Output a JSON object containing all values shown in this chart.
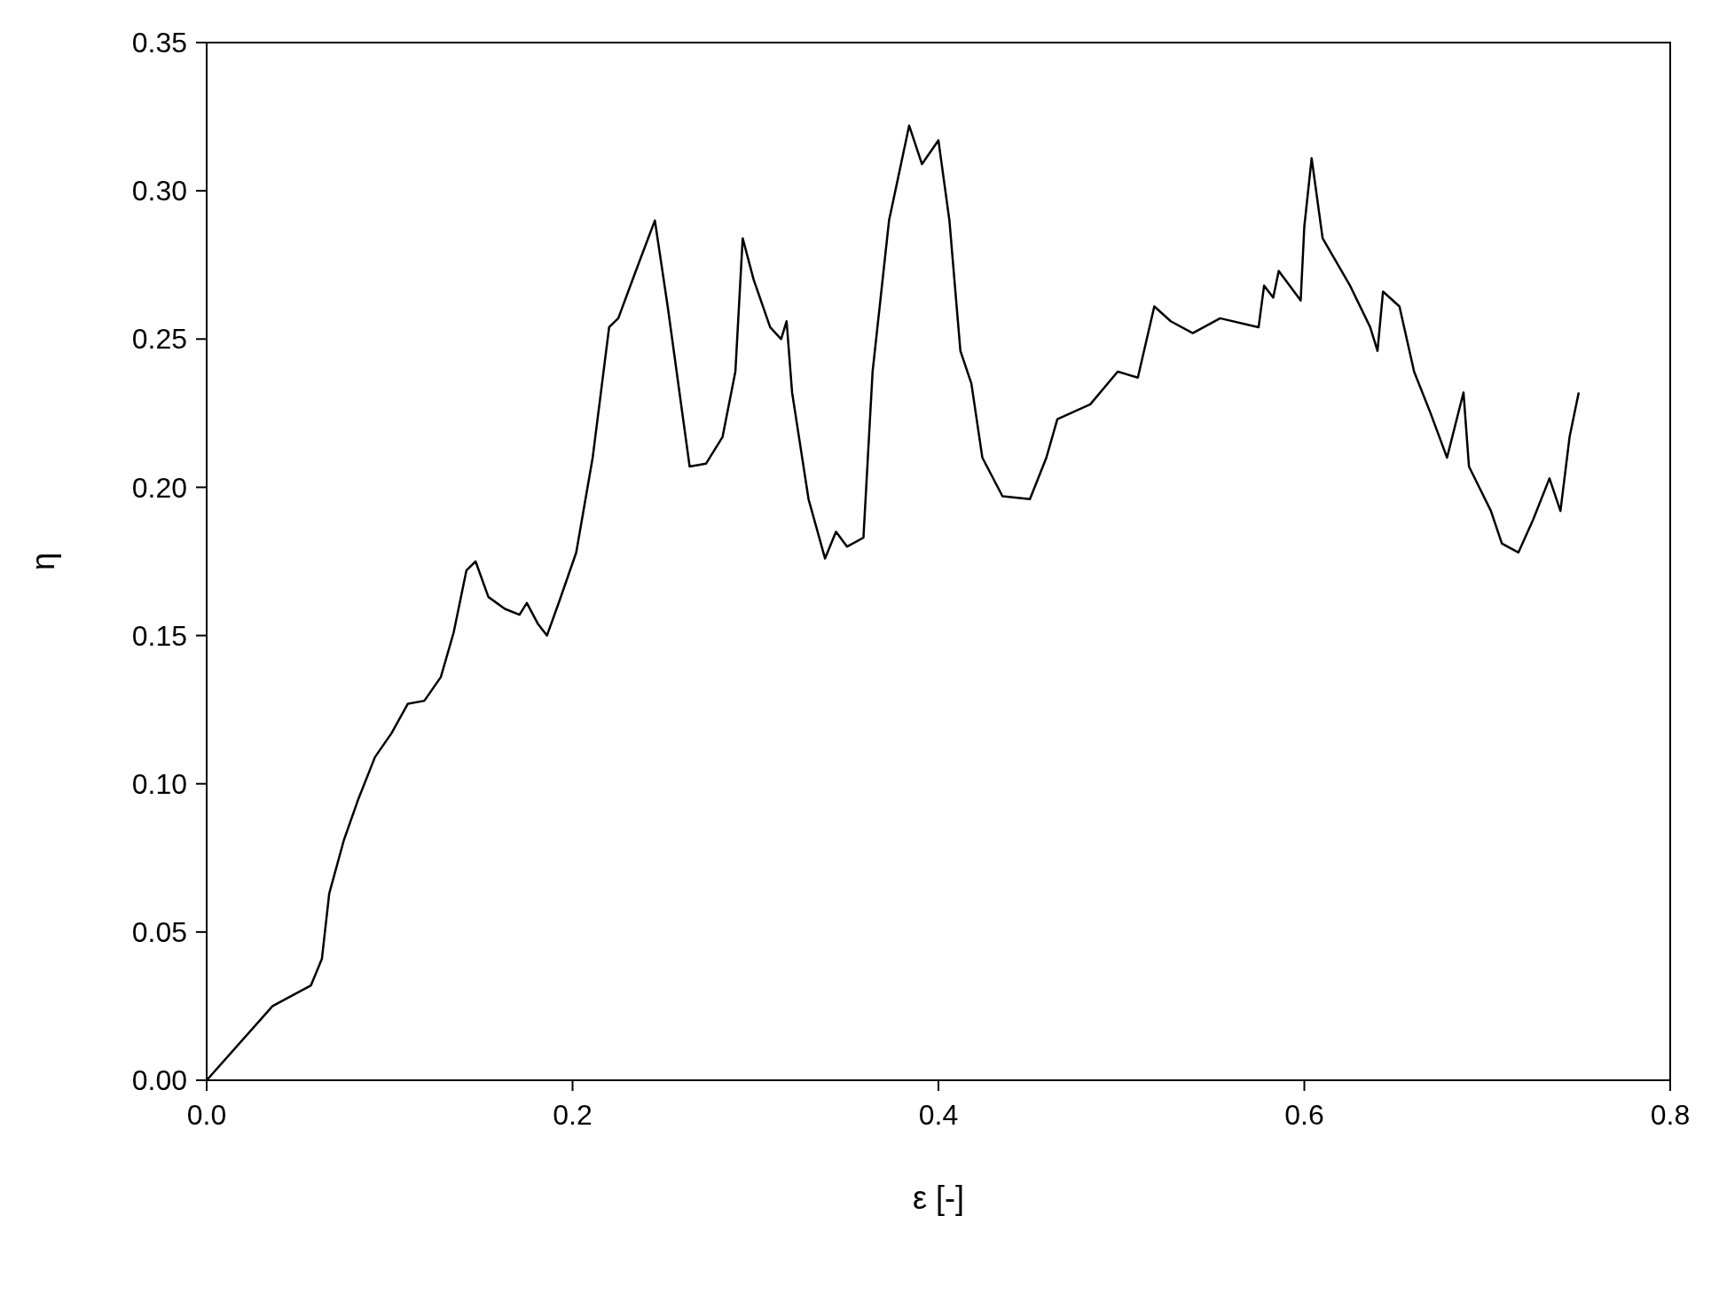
{
  "chart_data": {
    "type": "line",
    "xlabel": "ε [-]",
    "ylabel": "η",
    "xlim": [
      0,
      0.8
    ],
    "ylim": [
      0,
      0.35
    ],
    "xticks": [
      {
        "value": 0,
        "label": "0.0"
      },
      {
        "value": 0.2,
        "label": "0.2"
      },
      {
        "value": 0.4,
        "label": "0.4"
      },
      {
        "value": 0.6,
        "label": "0.6"
      },
      {
        "value": 0.8,
        "label": "0.8"
      }
    ],
    "yticks": [
      {
        "value": 0,
        "label": "0.00"
      },
      {
        "value": 0.05,
        "label": "0.05"
      },
      {
        "value": 0.1,
        "label": "0.10"
      },
      {
        "value": 0.15,
        "label": "0.15"
      },
      {
        "value": 0.2,
        "label": "0.20"
      },
      {
        "value": 0.25,
        "label": "0.25"
      },
      {
        "value": 0.3,
        "label": "0.30"
      },
      {
        "value": 0.35,
        "label": "0.35"
      }
    ],
    "grid": false,
    "marker": "none",
    "line_style": "solid",
    "series": [
      {
        "color": "#000000",
        "x": [
          0,
          0.036,
          0.045,
          0.057,
          0.063,
          0.067,
          0.075,
          0.083,
          0.092,
          0.101,
          0.11,
          0.119,
          0.128,
          0.135,
          0.142,
          0.147,
          0.154,
          0.163,
          0.171,
          0.175,
          0.181,
          0.186,
          0.193,
          0.202,
          0.211,
          0.22,
          0.225,
          0.234,
          0.245,
          0.252,
          0.264,
          0.273,
          0.282,
          0.289,
          0.293,
          0.299,
          0.308,
          0.314,
          0.317,
          0.32,
          0.329,
          0.338,
          0.344,
          0.35,
          0.359,
          0.364,
          0.373,
          0.384,
          0.391,
          0.4,
          0.406,
          0.412,
          0.418,
          0.424,
          0.435,
          0.45,
          0.459,
          0.465,
          0.483,
          0.498,
          0.509,
          0.518,
          0.527,
          0.539,
          0.554,
          0.575,
          0.578,
          0.583,
          0.586,
          0.598,
          0.6,
          0.604,
          0.61,
          0.625,
          0.636,
          0.64,
          0.643,
          0.652,
          0.66,
          0.669,
          0.678,
          0.687,
          0.69,
          0.702,
          0.708,
          0.717,
          0.725,
          0.734,
          0.74,
          0.745,
          0.75
        ],
        "values": [
          0,
          0.025,
          0.028,
          0.032,
          0.041,
          0.063,
          0.081,
          0.095,
          0.109,
          0.117,
          0.127,
          0.128,
          0.136,
          0.151,
          0.172,
          0.175,
          0.163,
          0.159,
          0.157,
          0.161,
          0.154,
          0.15,
          0.162,
          0.178,
          0.21,
          0.254,
          0.257,
          0.272,
          0.29,
          0.261,
          0.207,
          0.208,
          0.217,
          0.239,
          0.284,
          0.27,
          0.254,
          0.25,
          0.256,
          0.232,
          0.196,
          0.176,
          0.185,
          0.18,
          0.183,
          0.239,
          0.29,
          0.322,
          0.309,
          0.317,
          0.29,
          0.246,
          0.235,
          0.21,
          0.197,
          0.196,
          0.21,
          0.223,
          0.228,
          0.239,
          0.237,
          0.261,
          0.256,
          0.252,
          0.257,
          0.254,
          0.268,
          0.264,
          0.273,
          0.263,
          0.288,
          0.311,
          0.284,
          0.268,
          0.254,
          0.246,
          0.266,
          0.261,
          0.239,
          0.225,
          0.21,
          0.232,
          0.207,
          0.192,
          0.181,
          0.178,
          0.189,
          0.203,
          0.192,
          0.217,
          0.232
        ]
      }
    ]
  }
}
